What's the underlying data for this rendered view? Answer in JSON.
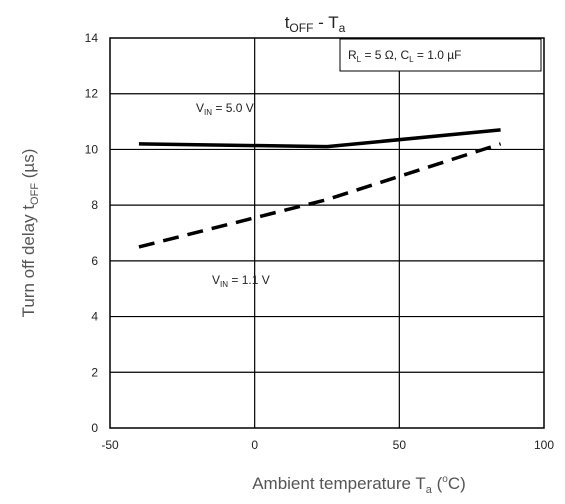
{
  "chart_data": {
    "type": "line",
    "title": {
      "main": "t",
      "main_sub": "OFF",
      "sep": " - ",
      "sym": "T",
      "sym_sub": "a"
    },
    "xlabel": {
      "main": "Ambient temperature  T",
      "sub": "a",
      "unit_open": "  (",
      "unit_sup": "o",
      "unit": "C)"
    },
    "ylabel": {
      "main": "Turn off delay  t",
      "sub": "OFF",
      "unit": " (µs)"
    },
    "xlim": [
      -50,
      100
    ],
    "ylim": [
      0,
      14
    ],
    "x_ticks": [
      -50,
      0,
      50,
      100
    ],
    "y_ticks": [
      0,
      2,
      4,
      6,
      8,
      10,
      12,
      14
    ],
    "grid": true,
    "conditions_box": {
      "r_sym": "R",
      "r_sub": "L",
      "r_val": " = 5 Ω, ",
      "c_sym": "C",
      "c_sub": "L",
      "c_val": " = 1.0 µF"
    },
    "series": [
      {
        "name": "VIN = 5.0 V",
        "label_sym": "V",
        "label_sub": "IN",
        "label_val": " = 5.0 V",
        "style": "solid",
        "color": "#000000",
        "x": [
          -40,
          25,
          85
        ],
        "y": [
          10.2,
          10.1,
          10.7
        ]
      },
      {
        "name": "VIN = 1.1 V",
        "label_sym": "V",
        "label_sub": "IN",
        "label_val": " = 1.1 V",
        "style": "dashed",
        "color": "#000000",
        "x": [
          -40,
          25,
          85
        ],
        "y": [
          6.5,
          8.2,
          10.2
        ]
      }
    ]
  }
}
